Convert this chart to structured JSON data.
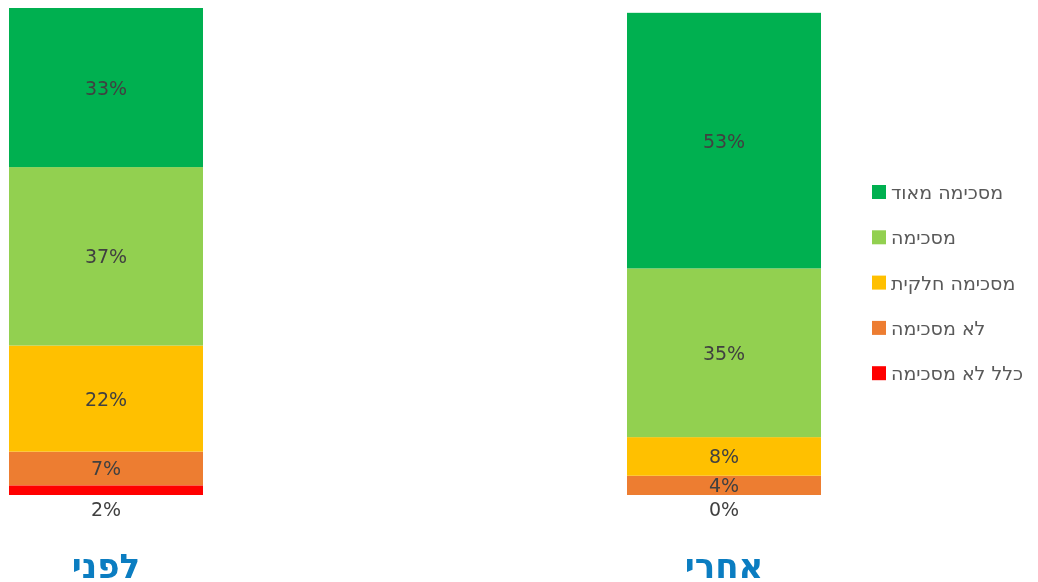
{
  "chart_data": {
    "type": "bar",
    "stacked": true,
    "legend": "right",
    "categories": [
      "לפני",
      "אחרי"
    ],
    "series": [
      {
        "name": "כלל לא מסכימה",
        "color": "#ff0000",
        "values": [
          2,
          0
        ],
        "value_labels": [
          "2%",
          "0%"
        ]
      },
      {
        "name": "לא מסכימה",
        "color": "#ed7d31",
        "values": [
          7,
          4
        ],
        "value_labels": [
          "7%",
          "4%"
        ]
      },
      {
        "name": "מסכימה חלקית",
        "color": "#ffc000",
        "values": [
          22,
          8
        ],
        "value_labels": [
          "22%",
          "8%"
        ]
      },
      {
        "name": "מסכימה",
        "color": "#92d050",
        "values": [
          37,
          35
        ],
        "value_labels": [
          "37%",
          "35%"
        ]
      },
      {
        "name": "מסכימה מאוד",
        "color": "#00b050",
        "values": [
          33,
          53
        ],
        "value_labels": [
          "33%",
          "53%"
        ]
      }
    ]
  }
}
